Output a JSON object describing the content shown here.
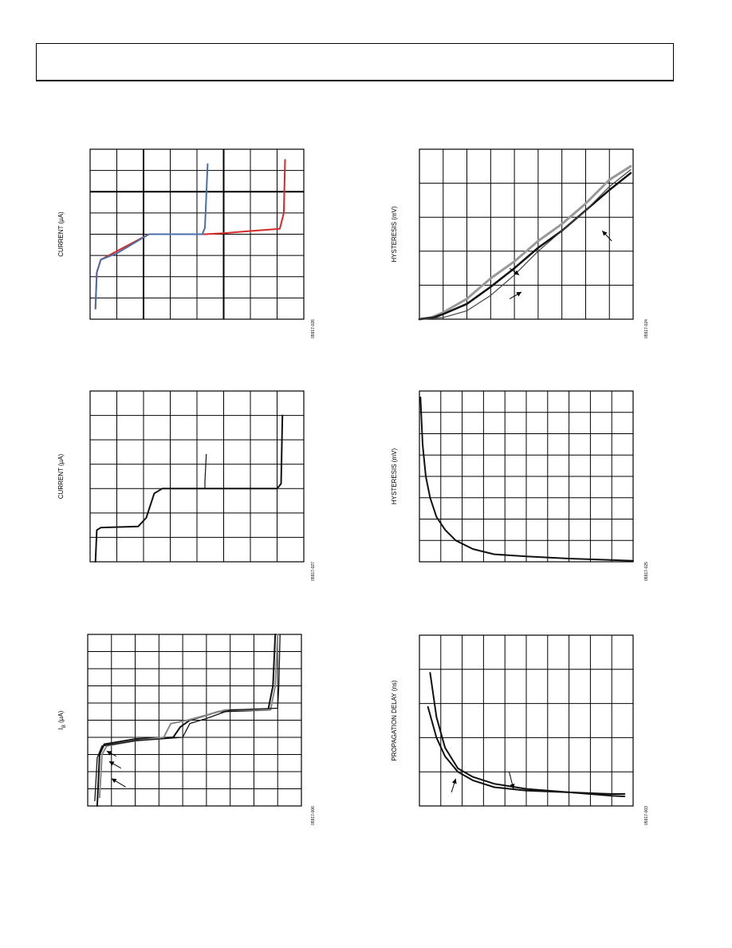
{
  "page": {
    "header": ""
  },
  "chart_data": [
    {
      "id": "c1",
      "type": "line",
      "ylabel": "CURRENT (µA)",
      "figcode": "05917-026",
      "xlim": [
        0,
        8
      ],
      "ylim": [
        0,
        8
      ],
      "vlines_bold": [
        2,
        5
      ],
      "hlines_bold": [
        6
      ],
      "series": [
        {
          "color": "#d42a2a",
          "width": 2,
          "points": [
            [
              0.2,
              0.5
            ],
            [
              0.25,
              2.2
            ],
            [
              0.4,
              2.8
            ],
            [
              1.0,
              3.2
            ],
            [
              2.2,
              4.0
            ],
            [
              4.3,
              4.0
            ],
            [
              5.0,
              4.05
            ],
            [
              6.0,
              4.15
            ],
            [
              7.1,
              4.25
            ],
            [
              7.25,
              5.0
            ],
            [
              7.3,
              7.5
            ]
          ]
        },
        {
          "color": "#4a6fa8",
          "width": 2,
          "points": [
            [
              0.2,
              0.5
            ],
            [
              0.25,
              2.2
            ],
            [
              0.4,
              2.8
            ],
            [
              1.0,
              3.1
            ],
            [
              2.2,
              4.0
            ],
            [
              4.2,
              4.0
            ],
            [
              4.3,
              4.3
            ],
            [
              4.4,
              7.3
            ]
          ]
        }
      ],
      "annotations": []
    },
    {
      "id": "c2",
      "type": "line",
      "ylabel": "HYSTERESIS (mV)",
      "figcode": "05917-024",
      "xlim": [
        0,
        9
      ],
      "ylim": [
        0,
        5
      ],
      "vlines_bold": [],
      "hlines_bold": [],
      "series": [
        {
          "color": "#999999",
          "width": 3,
          "points": [
            [
              0.0,
              0.0
            ],
            [
              0.5,
              0.05
            ],
            [
              1.0,
              0.2
            ],
            [
              2.0,
              0.6
            ],
            [
              3.0,
              1.2
            ],
            [
              4.0,
              1.7
            ],
            [
              5.0,
              2.3
            ],
            [
              6.0,
              2.8
            ],
            [
              7.0,
              3.4
            ],
            [
              8.0,
              4.1
            ],
            [
              8.9,
              4.5
            ]
          ]
        },
        {
          "color": "#111111",
          "width": 2.5,
          "points": [
            [
              0.0,
              0.0
            ],
            [
              0.6,
              0.05
            ],
            [
              1.0,
              0.15
            ],
            [
              2.0,
              0.45
            ],
            [
              3.0,
              0.95
            ],
            [
              4.0,
              1.5
            ],
            [
              5.0,
              2.1
            ],
            [
              6.0,
              2.6
            ],
            [
              7.0,
              3.2
            ],
            [
              8.0,
              3.8
            ],
            [
              8.9,
              4.3
            ]
          ]
        },
        {
          "color": "#444444",
          "width": 1.2,
          "points": [
            [
              0.0,
              0.0
            ],
            [
              1.0,
              0.05
            ],
            [
              2.0,
              0.25
            ],
            [
              3.0,
              0.7
            ],
            [
              4.0,
              1.3
            ],
            [
              5.0,
              2.0
            ],
            [
              6.0,
              2.6
            ],
            [
              7.0,
              3.2
            ],
            [
              8.0,
              3.9
            ],
            [
              8.9,
              4.4
            ]
          ]
        }
      ],
      "annotations": [
        {
          "type": "arrow",
          "from": [
            8.1,
            2.3
          ],
          "to": [
            7.7,
            2.6
          ]
        },
        {
          "type": "arrow",
          "from": [
            3.8,
            1.5
          ],
          "to": [
            4.2,
            1.3
          ]
        },
        {
          "type": "arrow",
          "from": [
            3.8,
            0.6
          ],
          "to": [
            4.3,
            0.8
          ]
        }
      ]
    },
    {
      "id": "c3",
      "type": "line",
      "ylabel": "CURRENT (µA)",
      "figcode": "05917-027",
      "xlim": [
        0,
        8
      ],
      "ylim": [
        0,
        7
      ],
      "vlines_bold": [],
      "hlines_bold": [],
      "series": [
        {
          "color": "#111111",
          "width": 2,
          "points": [
            [
              0.2,
              0.0
            ],
            [
              0.25,
              1.3
            ],
            [
              0.4,
              1.4
            ],
            [
              1.8,
              1.45
            ],
            [
              2.1,
              1.8
            ],
            [
              2.4,
              2.8
            ],
            [
              2.7,
              3.0
            ],
            [
              7.0,
              3.0
            ],
            [
              7.15,
              3.2
            ],
            [
              7.2,
              6.0
            ]
          ]
        },
        {
          "color": "#111111",
          "width": 1.2,
          "points": [
            [
              4.3,
              3.0
            ],
            [
              4.3,
              3.3
            ],
            [
              4.35,
              4.4
            ]
          ]
        }
      ],
      "annotations": []
    },
    {
      "id": "c4",
      "type": "line",
      "ylabel": "HYSTERESIS (mV)",
      "figcode": "05917-025",
      "xlim": [
        0,
        10
      ],
      "ylim": [
        0,
        8
      ],
      "vlines_bold": [],
      "hlines_bold": [],
      "series": [
        {
          "color": "#111111",
          "width": 2,
          "points": [
            [
              0.05,
              7.7
            ],
            [
              0.15,
              5.5
            ],
            [
              0.3,
              4.0
            ],
            [
              0.5,
              3.0
            ],
            [
              0.8,
              2.1
            ],
            [
              1.2,
              1.5
            ],
            [
              1.7,
              1.0
            ],
            [
              2.5,
              0.6
            ],
            [
              3.5,
              0.35
            ],
            [
              5.0,
              0.25
            ],
            [
              7.0,
              0.15
            ],
            [
              10.0,
              0.05
            ]
          ]
        }
      ],
      "annotations": []
    },
    {
      "id": "c5",
      "type": "line",
      "ylabel": "I_B (µA)",
      "figcode": "05917-006",
      "xlim": [
        0,
        9
      ],
      "ylim": [
        0,
        10
      ],
      "vlines_bold": [],
      "hlines_bold": [],
      "series": [
        {
          "color": "#111111",
          "width": 2,
          "points": [
            [
              0.4,
              0.0
            ],
            [
              0.5,
              3.0
            ],
            [
              0.7,
              3.6
            ],
            [
              2.0,
              3.9
            ],
            [
              3.6,
              4.0
            ],
            [
              3.9,
              4.6
            ],
            [
              4.3,
              5.0
            ],
            [
              5.5,
              5.5
            ],
            [
              7.6,
              5.6
            ],
            [
              7.8,
              7.0
            ],
            [
              7.9,
              10.0
            ]
          ]
        },
        {
          "color": "#888888",
          "width": 2,
          "points": [
            [
              0.5,
              0.5
            ],
            [
              0.6,
              3.0
            ],
            [
              0.8,
              3.5
            ],
            [
              2.0,
              3.8
            ],
            [
              3.2,
              4.0
            ],
            [
              3.5,
              4.8
            ],
            [
              4.2,
              5.0
            ],
            [
              5.8,
              5.6
            ],
            [
              7.7,
              5.6
            ],
            [
              7.9,
              7.0
            ],
            [
              8.0,
              10.0
            ]
          ]
        },
        {
          "color": "#111111",
          "width": 1.3,
          "points": [
            [
              0.3,
              0.3
            ],
            [
              0.4,
              2.8
            ],
            [
              0.6,
              3.5
            ],
            [
              2.0,
              3.8
            ],
            [
              4.0,
              4.0
            ],
            [
              4.3,
              4.8
            ],
            [
              5.0,
              5.1
            ],
            [
              6.0,
              5.6
            ],
            [
              8.0,
              5.7
            ],
            [
              8.05,
              7.0
            ],
            [
              8.1,
              10.0
            ]
          ]
        }
      ],
      "annotations": [
        {
          "type": "arrow",
          "from": [
            1.2,
            2.9
          ],
          "to": [
            0.8,
            3.2
          ]
        },
        {
          "type": "arrow",
          "from": [
            1.4,
            2.2
          ],
          "to": [
            0.9,
            2.6
          ]
        },
        {
          "type": "arrow",
          "from": [
            1.6,
            1.1
          ],
          "to": [
            1.0,
            1.6
          ]
        }
      ]
    },
    {
      "id": "c6",
      "type": "line",
      "ylabel": "PROPAGATION DELAY (ns)",
      "figcode": "05917-003",
      "xlim": [
        0,
        10
      ],
      "ylim": [
        0,
        5
      ],
      "vlines_bold": [],
      "hlines_bold": [],
      "series": [
        {
          "color": "#111111",
          "width": 2,
          "points": [
            [
              0.5,
              3.9
            ],
            [
              0.8,
              2.6
            ],
            [
              1.2,
              1.7
            ],
            [
              1.8,
              1.1
            ],
            [
              2.5,
              0.85
            ],
            [
              3.5,
              0.65
            ],
            [
              5.0,
              0.5
            ],
            [
              7.0,
              0.4
            ],
            [
              9.0,
              0.3
            ],
            [
              9.6,
              0.28
            ]
          ]
        },
        {
          "color": "#111111",
          "width": 2,
          "points": [
            [
              0.4,
              2.9
            ],
            [
              0.8,
              2.0
            ],
            [
              1.2,
              1.45
            ],
            [
              1.8,
              1.0
            ],
            [
              2.5,
              0.75
            ],
            [
              3.5,
              0.55
            ],
            [
              5.0,
              0.45
            ],
            [
              7.0,
              0.4
            ],
            [
              9.0,
              0.35
            ],
            [
              9.6,
              0.35
            ]
          ]
        }
      ],
      "annotations": [
        {
          "type": "arrow",
          "from": [
            1.5,
            0.4
          ],
          "to": [
            1.7,
            0.8
          ]
        },
        {
          "type": "arrow",
          "from": [
            4.2,
            1.0
          ],
          "to": [
            4.4,
            0.5
          ]
        }
      ]
    }
  ]
}
